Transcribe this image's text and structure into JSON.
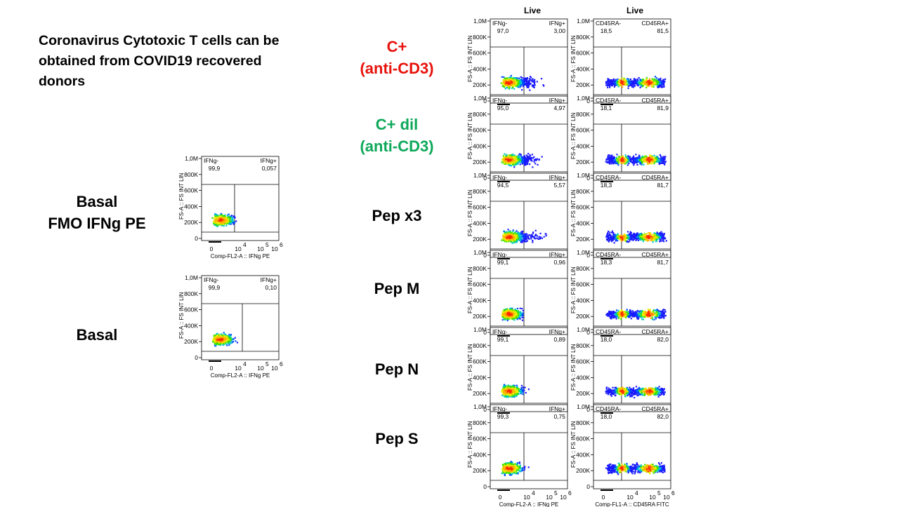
{
  "title": "Coronavirus Cytotoxic T cells can be obtained from COVID19 recovered donors",
  "column_headers": [
    "Live",
    "Live"
  ],
  "left_labels": [
    {
      "lines": [
        "Basal",
        "FMO IFNg PE"
      ],
      "color": "#000000"
    },
    {
      "lines": [
        "Basal"
      ],
      "color": "#000000"
    }
  ],
  "right_labels": [
    {
      "lines": [
        "C+",
        "(anti-CD3)"
      ],
      "color": "#e8120c"
    },
    {
      "lines": [
        "C+ dil",
        "(anti-CD3)"
      ],
      "color": "#0ea85a"
    },
    {
      "lines": [
        "Pep x3"
      ],
      "color": "#000000"
    },
    {
      "lines": [
        "Pep M"
      ],
      "color": "#000000"
    },
    {
      "lines": [
        "Pep N"
      ],
      "color": "#000000"
    },
    {
      "lines": [
        "Pep S"
      ],
      "color": "#000000"
    }
  ],
  "y_axis_title": "FS-A :: FS INT LIN",
  "y_ticks": [
    "1,0M",
    "800K",
    "600K",
    "400K",
    "200K",
    "0"
  ],
  "x_ticks": [
    "0",
    "10",
    "10",
    "10"
  ],
  "x_tick_exponents": [
    "4",
    "5",
    "6"
  ],
  "ifng_x_title": "Comp-FL2-A :: IFNg PE",
  "cd45_x_title": "Comp-FL1-A :: CD45RA FITC",
  "left_plots": [
    {
      "neg_label": "IFNg-",
      "neg": "99,9",
      "pos_label": "IFNg+",
      "pos": "0,057"
    },
    {
      "neg_label": "IFNg-",
      "neg": "99,9",
      "pos_label": "IFNg+",
      "pos": "0,10"
    }
  ],
  "ifng_plots": [
    {
      "neg_label": "IFNg-",
      "neg": "97,0",
      "pos_label": "IFNg+",
      "pos": "3,00"
    },
    {
      "neg_label": "IFNg-",
      "neg": "95,0",
      "pos_label": "IFNg+",
      "pos": "4,97"
    },
    {
      "neg_label": "IFNg-",
      "neg": "94,5",
      "pos_label": "IFNg+",
      "pos": "5,57"
    },
    {
      "neg_label": "IFNg-",
      "neg": "99,1",
      "pos_label": "IFNg+",
      "pos": "0,96"
    },
    {
      "neg_label": "IFNg-",
      "neg": "99,1",
      "pos_label": "IFNg+",
      "pos": "0,89"
    },
    {
      "neg_label": "IFNg-",
      "neg": "99,3",
      "pos_label": "IFNg+",
      "pos": "0,75"
    }
  ],
  "cd45_plots": [
    {
      "neg_label": "CD45RA-",
      "neg": "18,5",
      "pos_label": "CD45RA+",
      "pos": "81,5"
    },
    {
      "neg_label": "CD45RA-",
      "neg": "18,1",
      "pos_label": "CD45RA+",
      "pos": "81,9"
    },
    {
      "neg_label": "CD45RA-",
      "neg": "18,3",
      "pos_label": "CD45RA+",
      "pos": "81,7"
    },
    {
      "neg_label": "CD45RA-",
      "neg": "18,3",
      "pos_label": "CD45RA+",
      "pos": "81,7"
    },
    {
      "neg_label": "CD45RA-",
      "neg": "18,0",
      "pos_label": "CD45RA+",
      "pos": "82,0"
    },
    {
      "neg_label": "CD45RA-",
      "neg": "18,0",
      "pos_label": "CD45RA+",
      "pos": "82,0"
    }
  ]
}
